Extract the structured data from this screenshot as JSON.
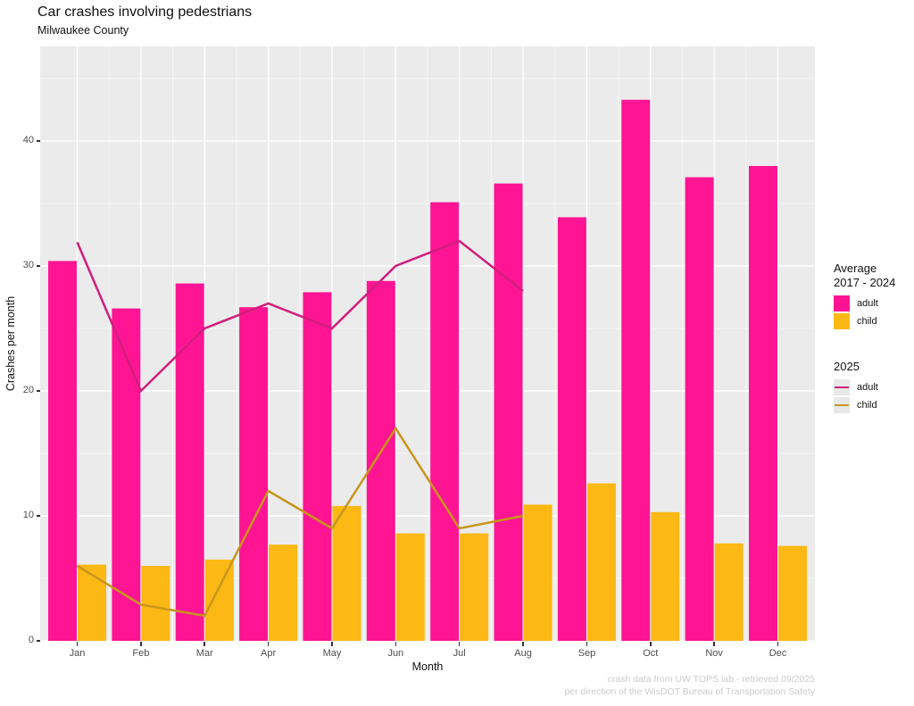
{
  "header": {
    "title": "Car crashes involving pedestrians",
    "subtitle": "Milwaukee County"
  },
  "axes": {
    "x_label": "Month",
    "y_label": "Crashes per month"
  },
  "legend": {
    "avg": {
      "title_line1": "Average",
      "title_line2": "2017 - 2024",
      "items": [
        {
          "label": "adult",
          "color": "#FF1493"
        },
        {
          "label": "child",
          "color": "#FCB814"
        }
      ]
    },
    "y2025": {
      "title": "2025",
      "items": [
        {
          "label": "adult",
          "color": "#D01E7D"
        },
        {
          "label": "child",
          "color": "#C8961E"
        }
      ]
    }
  },
  "caption": {
    "line1": "crash data from UW TOPS lab - retrieved 09/2025",
    "line2": "per direction of the WisDOT Bureau of Transportation Safety"
  },
  "chart_data": {
    "type": "bar",
    "title": "Car crashes involving pedestrians",
    "subtitle": "Milwaukee County",
    "xlabel": "Month",
    "ylabel": "Crashes per month",
    "categories": [
      "Jan",
      "Feb",
      "Mar",
      "Apr",
      "May",
      "Jun",
      "Jul",
      "Aug",
      "Sep",
      "Oct",
      "Nov",
      "Dec"
    ],
    "series": [
      {
        "name": "adult",
        "group": "Average 2017 - 2024",
        "type": "bar",
        "color": "#FF1493",
        "values": [
          30.4,
          26.6,
          28.6,
          26.7,
          27.9,
          28.8,
          35.1,
          36.6,
          33.9,
          43.3,
          37.1,
          38.0
        ]
      },
      {
        "name": "child",
        "group": "Average 2017 - 2024",
        "type": "bar",
        "color": "#FCB814",
        "values": [
          6.1,
          6.0,
          6.5,
          7.7,
          10.8,
          8.6,
          8.6,
          10.9,
          12.6,
          10.3,
          7.8,
          7.6
        ]
      },
      {
        "name": "adult",
        "group": "2025",
        "type": "line",
        "color": "#D01E7D",
        "values": [
          31.9,
          20.0,
          25.0,
          27.0,
          25.0,
          30.0,
          32.0,
          28.0
        ]
      },
      {
        "name": "child",
        "group": "2025",
        "type": "line",
        "color": "#C8961E",
        "values": [
          6.0,
          2.9,
          2.0,
          12.0,
          9.0,
          17.0,
          9.0,
          10.0
        ]
      }
    ],
    "ylim": [
      0,
      47.5
    ],
    "yticks_major": [
      0,
      10,
      20,
      30,
      40
    ],
    "yticks_minor": [
      5,
      15,
      25,
      35,
      45
    ],
    "grid": "on",
    "legend_position": "right",
    "panel_bg": "#EBEBEB",
    "grid_major_color": "#FFFFFF",
    "grid_minor_color": "rgba(255,255,255,0.55)"
  }
}
